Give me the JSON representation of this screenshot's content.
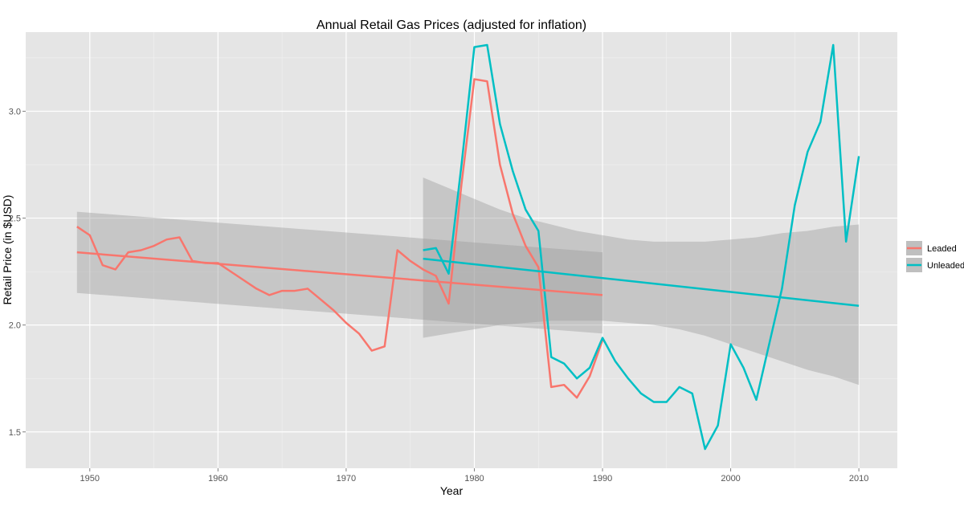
{
  "chart_data": {
    "type": "line",
    "title": "Annual Retail Gas Prices (adjusted for inflation)",
    "xlabel": "Year",
    "ylabel": "Retail Price (in $USD)",
    "xlim": [
      1945,
      2013
    ],
    "ylim": [
      1.33,
      3.37
    ],
    "x_ticks": [
      1950,
      1960,
      1970,
      1980,
      1990,
      2000,
      2010
    ],
    "y_ticks": [
      1.5,
      2.0,
      2.5,
      3.0
    ],
    "x_tick_labels": [
      "1950",
      "1960",
      "1970",
      "1980",
      "1990",
      "2000",
      "2010"
    ],
    "y_tick_labels": [
      "1.5",
      "2.0",
      "2.5",
      "3.0"
    ],
    "grid": true,
    "legend_position": "right",
    "series": [
      {
        "name": "Leaded",
        "color": "#F8766D",
        "x": [
          1949,
          1950,
          1951,
          1952,
          1953,
          1954,
          1955,
          1956,
          1957,
          1958,
          1959,
          1960,
          1961,
          1962,
          1963,
          1964,
          1965,
          1966,
          1967,
          1968,
          1969,
          1970,
          1971,
          1972,
          1973,
          1974,
          1975,
          1976,
          1977,
          1978,
          1979,
          1980,
          1981,
          1982,
          1983,
          1984,
          1985,
          1986,
          1987,
          1988,
          1989,
          1990
        ],
        "y": [
          2.46,
          2.42,
          2.28,
          2.26,
          2.34,
          2.35,
          2.37,
          2.4,
          2.41,
          2.3,
          2.29,
          2.29,
          2.25,
          2.21,
          2.17,
          2.14,
          2.16,
          2.16,
          2.17,
          2.12,
          2.07,
          2.01,
          1.96,
          1.88,
          1.9,
          2.35,
          2.3,
          2.26,
          2.23,
          2.1,
          2.66,
          3.15,
          3.14,
          2.75,
          2.52,
          2.37,
          2.27,
          1.71,
          1.72,
          1.66,
          1.76,
          1.93
        ],
        "trend": {
          "x": [
            1949,
            1990
          ],
          "y": [
            2.34,
            2.14
          ]
        },
        "band": {
          "x": [
            1949,
            1990
          ],
          "lower": [
            2.15,
            1.96
          ],
          "upper": [
            2.53,
            2.34
          ]
        }
      },
      {
        "name": "Unleaded",
        "color": "#00BFC4",
        "x": [
          1976,
          1977,
          1978,
          1979,
          1980,
          1981,
          1982,
          1983,
          1984,
          1985,
          1986,
          1987,
          1988,
          1989,
          1990,
          1991,
          1992,
          1993,
          1994,
          1995,
          1996,
          1997,
          1998,
          1999,
          2000,
          2001,
          2002,
          2003,
          2004,
          2005,
          2006,
          2007,
          2008,
          2009,
          2010
        ],
        "y": [
          2.35,
          2.36,
          2.24,
          2.75,
          3.3,
          3.31,
          2.94,
          2.72,
          2.54,
          2.44,
          1.85,
          1.82,
          1.75,
          1.8,
          1.94,
          1.83,
          1.75,
          1.68,
          1.64,
          1.64,
          1.71,
          1.68,
          1.42,
          1.53,
          1.91,
          1.8,
          1.65,
          1.91,
          2.17,
          2.56,
          2.81,
          2.95,
          3.31,
          2.39,
          2.79
        ],
        "trend": {
          "x": [
            1976,
            2010
          ],
          "y": [
            2.31,
            2.09
          ]
        },
        "band": {
          "x": [
            1976,
            1978,
            1980,
            1982,
            1984,
            1986,
            1988,
            1990,
            1992,
            1994,
            1996,
            1998,
            2000,
            2002,
            2004,
            2006,
            2008,
            2010
          ],
          "lower": [
            1.94,
            1.96,
            1.98,
            2.0,
            2.01,
            2.02,
            2.02,
            2.02,
            2.01,
            2.0,
            1.98,
            1.95,
            1.91,
            1.87,
            1.83,
            1.79,
            1.76,
            1.72
          ],
          "upper": [
            2.69,
            2.64,
            2.59,
            2.54,
            2.5,
            2.47,
            2.44,
            2.42,
            2.4,
            2.39,
            2.39,
            2.39,
            2.4,
            2.41,
            2.43,
            2.44,
            2.46,
            2.47
          ]
        }
      }
    ]
  }
}
